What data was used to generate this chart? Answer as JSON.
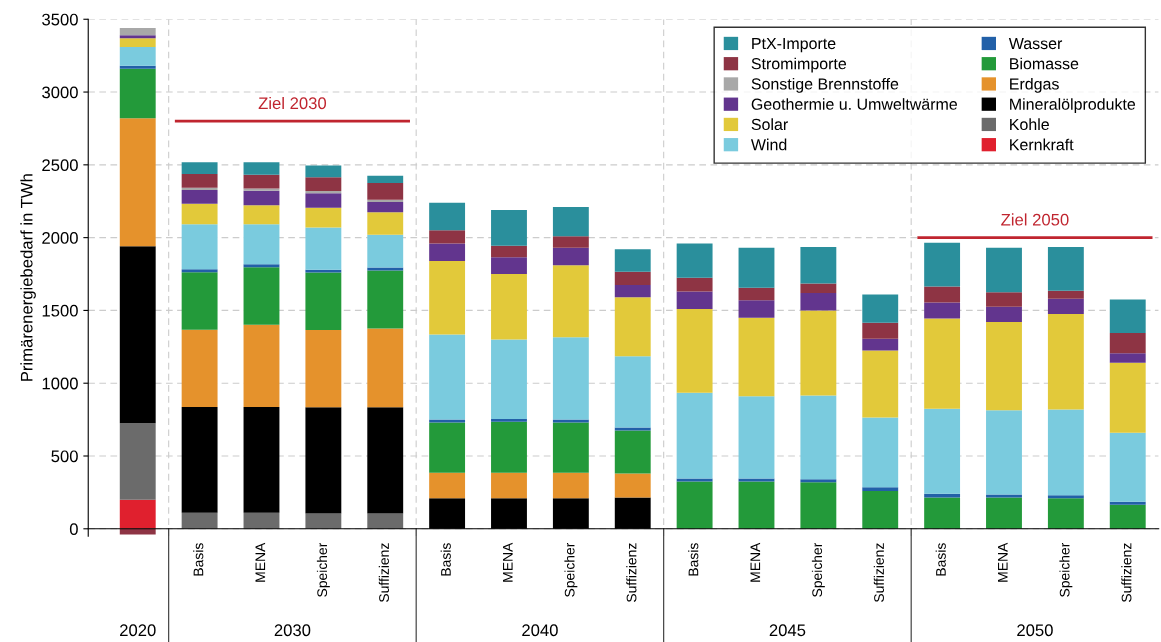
{
  "chart_data": {
    "type": "bar",
    "stacked": true,
    "ylabel": "Primärenergiebedarf in TWh",
    "categories": [
      null,
      "Basis",
      "MENA",
      "Speicher",
      "Suffizienz",
      "Basis",
      "MENA",
      "Speicher",
      "Suffizienz",
      "Basis",
      "MENA",
      "Speicher",
      "Suffizienz",
      "Basis",
      "MENA",
      "Speicher",
      "Suffizienz"
    ],
    "series": [
      {
        "name": "Kernkraft",
        "color": "#e0202e",
        "values": [
          200,
          0,
          0,
          0,
          0,
          0,
          0,
          0,
          0,
          0,
          0,
          0,
          0,
          0,
          0,
          0,
          0
        ]
      },
      {
        "name": "Kohle",
        "color": "#6b6b6b",
        "values": [
          525,
          110,
          110,
          105,
          105,
          0,
          0,
          0,
          0,
          0,
          0,
          0,
          0,
          0,
          0,
          0,
          0
        ]
      },
      {
        "name": "Mineralölprodukte",
        "color": "#000000",
        "values": [
          1215,
          727,
          727,
          730,
          730,
          210,
          210,
          210,
          215,
          0,
          0,
          0,
          0,
          0,
          0,
          0,
          0
        ]
      },
      {
        "name": "Erdgas",
        "color": "#e5922c",
        "values": [
          880,
          530,
          565,
          530,
          540,
          175,
          175,
          175,
          165,
          0,
          0,
          0,
          0,
          0,
          0,
          0,
          0
        ]
      },
      {
        "name": "Biomasse",
        "color": "#239a3a",
        "values": [
          340,
          395,
          395,
          395,
          400,
          345,
          350,
          345,
          295,
          325,
          325,
          320,
          260,
          215,
          215,
          210,
          165
        ]
      },
      {
        "name": "Wasser",
        "color": "#2260a8",
        "values": [
          20,
          20,
          20,
          20,
          20,
          20,
          20,
          20,
          20,
          20,
          20,
          20,
          25,
          25,
          20,
          20,
          20
        ]
      },
      {
        "name": "Wind",
        "color": "#7acbde",
        "values": [
          130,
          310,
          275,
          290,
          225,
          585,
          545,
          565,
          490,
          590,
          565,
          575,
          480,
          585,
          580,
          590,
          475
        ]
      },
      {
        "name": "Solar",
        "color": "#e2c93a",
        "values": [
          60,
          140,
          130,
          135,
          155,
          505,
          450,
          495,
          405,
          575,
          540,
          585,
          460,
          620,
          605,
          655,
          480
        ]
      },
      {
        "name": "Geothermie u. Umweltwärme",
        "color": "#62358e",
        "values": [
          20,
          95,
          100,
          100,
          70,
          120,
          115,
          120,
          85,
          120,
          120,
          120,
          80,
          110,
          105,
          105,
          65
        ]
      },
      {
        "name": "Sonstige Brennstoffe",
        "color": "#a8a8a8",
        "values": [
          50,
          15,
          15,
          15,
          15,
          0,
          0,
          0,
          0,
          0,
          0,
          0,
          0,
          0,
          0,
          0,
          0
        ]
      },
      {
        "name": "Stromimporte",
        "color": "#8e3444",
        "values": [
          -40,
          95,
          95,
          95,
          115,
          90,
          80,
          80,
          90,
          95,
          85,
          65,
          110,
          110,
          100,
          55,
          140
        ]
      },
      {
        "name": "PtX-Importe",
        "color": "#2a8f9c",
        "values": [
          0,
          80,
          85,
          80,
          50,
          190,
          245,
          200,
          155,
          235,
          275,
          250,
          195,
          300,
          305,
          300,
          230
        ]
      }
    ],
    "ylim": [
      -50,
      3500
    ],
    "yticks": [
      0,
      500,
      1000,
      1500,
      2000,
      2500,
      3000,
      3500
    ],
    "grid": true,
    "legend": "top right",
    "ref_lines": [
      {
        "axis": "y",
        "value": 2800,
        "label": "Ziel 2030",
        "color": "#c0252f"
      },
      {
        "axis": "y",
        "value": 2000,
        "label": "Ziel 2050",
        "color": "#c0252f"
      }
    ],
    "annotations": [
      "2020",
      "2030",
      "2040",
      "2045",
      "2050"
    ]
  }
}
